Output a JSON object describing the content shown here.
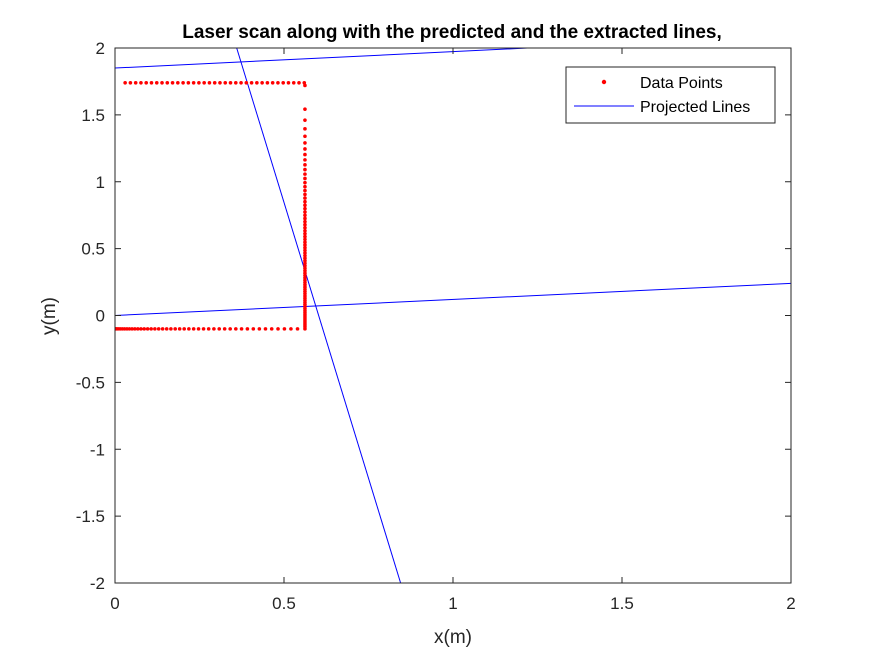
{
  "chart_data": {
    "type": "scatter",
    "title": "Laser scan along with the predicted and the extracted lines,",
    "xlabel": "x(m)",
    "ylabel": "y(m)",
    "xlim": [
      0,
      2
    ],
    "ylim": [
      -2,
      2
    ],
    "xticks": [
      0,
      0.5,
      1,
      1.5,
      2
    ],
    "xtick_labels": [
      "0",
      "0.5",
      "1",
      "1.5",
      "2"
    ],
    "yticks": [
      2,
      1.5,
      1,
      0.5,
      0,
      -0.5,
      -1,
      -1.5,
      -2
    ],
    "ytick_labels": [
      "2",
      "1.5",
      "1",
      "0.5",
      "0",
      "-0.5",
      "-1",
      "-1.5",
      "-2"
    ],
    "grid": false,
    "legend_position": "top-right",
    "series": [
      {
        "name": "Data Points",
        "type": "scatter",
        "color": "#ff0000",
        "segments": [
          {
            "from": [
              0.56,
              1.74
            ],
            "to": [
              0.03,
              1.74
            ],
            "count": 35,
            "spacing": "uniform"
          },
          {
            "from": [
              0.562,
              1.72
            ],
            "to": [
              0.562,
              -0.1
            ],
            "count": 70,
            "spacing": "denser-near-y0.2"
          },
          {
            "from": [
              0.0,
              -0.1
            ],
            "to": [
              0.54,
              -0.1
            ],
            "count": 45,
            "spacing": "denser-near-x0"
          }
        ]
      },
      {
        "name": "Projected Lines",
        "type": "line",
        "color": "#0000ff",
        "lines": [
          {
            "x": [
              0,
              1.22
            ],
            "y": [
              1.85,
              2.0
            ]
          },
          {
            "x": [
              0.36,
              0.845
            ],
            "y": [
              2.0,
              -2.0
            ]
          },
          {
            "x": [
              0,
              2.0
            ],
            "y": [
              0.0,
              0.24
            ]
          }
        ]
      }
    ]
  }
}
